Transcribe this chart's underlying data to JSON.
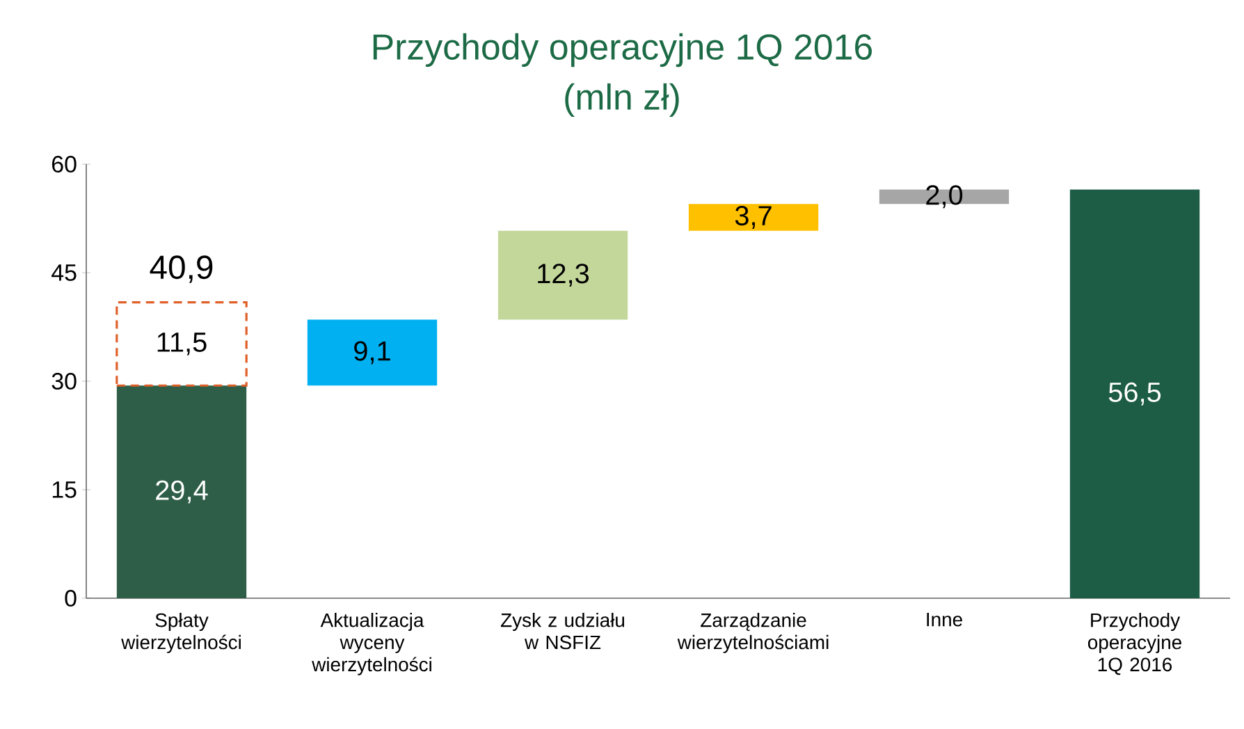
{
  "chart_data": {
    "type": "bar",
    "title": "Przychody operacyjne 1Q 2016",
    "subtitle": "(mln zł)",
    "categories": [
      "Spłaty wierzytelności",
      "Aktualizacja wyceny wierzytelności",
      "Zysk z udziału w NSFIZ",
      "Zarządzanie wierzytelnościami",
      "Inne",
      "Przychody operacyjne 1Q 2016"
    ],
    "series": [
      {
        "base": [
          0,
          29.4,
          38.5,
          50.8,
          54.5,
          0
        ],
        "colors": [
          "#2f5e48",
          "#00b0f0",
          "#c4d79b",
          "#ffc000",
          "#a6a6a6",
          "#1d5c45"
        ],
        "values": [
          29.4,
          9.1,
          12.3,
          3.7,
          2.0,
          56.5
        ],
        "value_labels": [
          "29,4",
          "9,1",
          "12,3",
          "3,7",
          "2,0",
          "56,5"
        ]
      },
      {
        "color": "#e0602a",
        "line_style": "dashed",
        "base": [
          29.4,
          null,
          null,
          null,
          null,
          null
        ],
        "values": [
          11.5,
          null,
          null,
          null,
          null,
          null
        ],
        "value_labels": [
          "11,5",
          null,
          null,
          null,
          null,
          null
        ]
      }
    ],
    "annotations": [
      {
        "text": "40,9",
        "x": "Spłaty wierzytelności",
        "y": 40.9
      }
    ],
    "ylim": [
      0,
      60
    ],
    "yticks": [
      0,
      15,
      30,
      45,
      60
    ],
    "grid": false
  }
}
